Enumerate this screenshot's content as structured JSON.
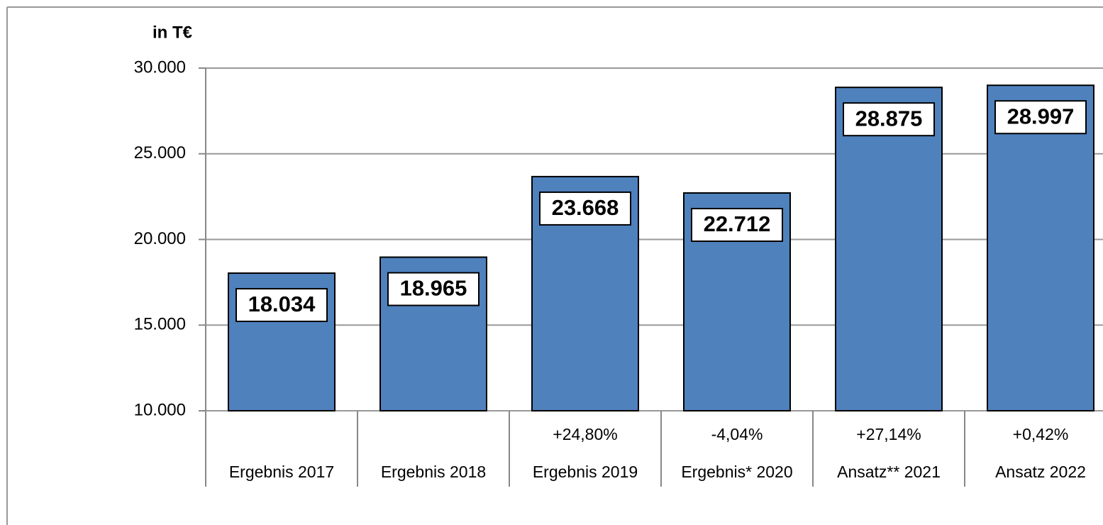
{
  "chart_data": {
    "type": "bar",
    "y_label": "in T€",
    "categories": [
      "Ergebnis 2017",
      "Ergebnis 2018",
      "Ergebnis 2019",
      "Ergebnis* 2020",
      "Ansatz** 2021",
      "Ansatz 2022"
    ],
    "change_labels": [
      null,
      null,
      "+24,80%",
      "-4,04%",
      "+27,14%",
      "+0,42%"
    ],
    "values": [
      18034,
      18965,
      23668,
      22712,
      28875,
      28997
    ],
    "value_labels": [
      "18.034",
      "18.965",
      "23.668",
      "22.712",
      "28.875",
      "28.997"
    ],
    "color": "#4f81bd",
    "ylim": [
      10000,
      30000
    ],
    "yticks": [
      {
        "value": 10000,
        "label": "10.000"
      },
      {
        "value": 15000,
        "label": "15.000"
      },
      {
        "value": 20000,
        "label": "20.000"
      },
      {
        "value": 25000,
        "label": "25.000"
      },
      {
        "value": 30000,
        "label": "30.000"
      }
    ],
    "grid": true
  }
}
